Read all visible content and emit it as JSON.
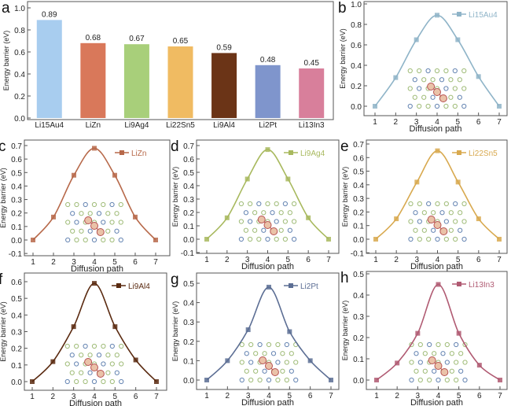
{
  "chart_data": [
    {
      "panel": "a",
      "type": "bar",
      "ylabel": "Energy barrier (eV)",
      "xlabel": "",
      "ylim": [
        0,
        1.0
      ],
      "yticks": [
        "0.0",
        "0.2",
        "0.4",
        "0.6",
        "0.8",
        "1.0"
      ],
      "categories": [
        "Li15Au4",
        "LiZn",
        "Li9Ag4",
        "Li22Sn5",
        "Li9Al4",
        "Li2Pt",
        "Li13In3"
      ],
      "values": [
        0.89,
        0.68,
        0.67,
        0.65,
        0.59,
        0.48,
        0.45
      ],
      "value_labels": [
        "0.89",
        "0.68",
        "0.67",
        "0.65",
        "0.59",
        "0.48",
        "0.45"
      ],
      "colors": [
        "#a8cdef",
        "#d9785a",
        "#a8cf7a",
        "#f0bb62",
        "#6b3417",
        "#7f95cc",
        "#d87f9b"
      ]
    },
    {
      "panel": "b",
      "type": "line",
      "legend": "Li15Au4",
      "color": "#8fb4c8",
      "xlabel": "Diffusion path",
      "ylabel": "Energy barrier (eV)",
      "x": [
        1,
        2,
        3,
        4,
        5,
        6,
        7
      ],
      "y": [
        0,
        0.28,
        0.65,
        0.89,
        0.65,
        0.29,
        0
      ],
      "ylim": [
        -0.08,
        1.0
      ],
      "yticks": [
        "0.0",
        "0.2",
        "0.4",
        "0.6",
        "0.8",
        "1.0"
      ],
      "xticks": [
        "1",
        "2",
        "3",
        "4",
        "5",
        "6",
        "7"
      ],
      "legend_position": "top-right"
    },
    {
      "panel": "c",
      "type": "line",
      "legend": "LiZn",
      "color": "#b7694a",
      "xlabel": "Diffusion path",
      "ylabel": "Energy barrier (eV)",
      "x": [
        1,
        2,
        3,
        4,
        5,
        6,
        7
      ],
      "y": [
        0,
        0.17,
        0.48,
        0.68,
        0.48,
        0.17,
        0
      ],
      "ylim": [
        -0.1,
        0.73
      ],
      "yticks": [
        "-0.1",
        "0.0",
        "0.1",
        "0.2",
        "0.3",
        "0.4",
        "0.5",
        "0.6",
        "0.7"
      ],
      "xticks": [
        "1",
        "2",
        "3",
        "4",
        "5",
        "6",
        "7"
      ],
      "legend_position": "top-right"
    },
    {
      "panel": "d",
      "type": "line",
      "legend": "Li9Ag4",
      "color": "#a8b95e",
      "xlabel": "Diffusion path",
      "ylabel": "Energy barrier (eV)",
      "x": [
        1,
        2,
        3,
        4,
        5,
        6,
        7
      ],
      "y": [
        0,
        0.16,
        0.45,
        0.67,
        0.45,
        0.16,
        0
      ],
      "ylim": [
        -0.1,
        0.73
      ],
      "yticks": [
        "-0.1",
        "0.0",
        "0.1",
        "0.2",
        "0.3",
        "0.4",
        "0.5",
        "0.6",
        "0.7"
      ],
      "xticks": [
        "1",
        "2",
        "3",
        "4",
        "5",
        "6",
        "7"
      ],
      "legend_position": "top-right"
    },
    {
      "panel": "e",
      "type": "line",
      "legend": "Li22Sn5",
      "color": "#d8a94f",
      "xlabel": "Diffusion path",
      "ylabel": "Energy barrier (eV)",
      "x": [
        1,
        2,
        3,
        4,
        5,
        6,
        7
      ],
      "y": [
        0,
        0.15,
        0.42,
        0.65,
        0.42,
        0.15,
        0
      ],
      "ylim": [
        -0.1,
        0.73
      ],
      "yticks": [
        "-0.1",
        "0.0",
        "0.1",
        "0.2",
        "0.3",
        "0.4",
        "0.5",
        "0.6",
        "0.7"
      ],
      "xticks": [
        "1",
        "2",
        "3",
        "4",
        "5",
        "6",
        "7"
      ],
      "legend_position": "top-right"
    },
    {
      "panel": "f",
      "type": "line",
      "legend": "Li9Al4",
      "color": "#5a2a10",
      "xlabel": "Diffusion path",
      "ylabel": "Energy barrier (eV)",
      "x": [
        1,
        2,
        3,
        4,
        5,
        6,
        7
      ],
      "y": [
        0,
        0.12,
        0.33,
        0.59,
        0.33,
        0.13,
        0
      ],
      "ylim": [
        -0.03,
        0.63
      ],
      "yticks": [
        "0.0",
        "0.1",
        "0.2",
        "0.3",
        "0.4",
        "0.5",
        "0.6"
      ],
      "xticks": [
        "1",
        "2",
        "3",
        "4",
        "5",
        "6",
        "7"
      ],
      "legend_position": "top-right"
    },
    {
      "panel": "g",
      "type": "line",
      "legend": "Li2Pt",
      "color": "#5c6e94",
      "xlabel": "Diffusion path",
      "ylabel": "Energy barrier (eV)",
      "x": [
        1,
        2,
        3,
        4,
        5,
        6,
        7
      ],
      "y": [
        0,
        0.1,
        0.26,
        0.48,
        0.25,
        0.1,
        0
      ],
      "ylim": [
        -0.04,
        0.55
      ],
      "yticks": [
        "0.0",
        "0.1",
        "0.2",
        "0.3",
        "0.4",
        "0.5"
      ],
      "xticks": [
        "1",
        "2",
        "3",
        "4",
        "5",
        "6",
        "7"
      ],
      "legend_position": "top-right"
    },
    {
      "panel": "h",
      "type": "line",
      "legend": "Li13In3",
      "color": "#b05a72",
      "xlabel": "Diffusion path",
      "ylabel": "Energy barrier (eV)",
      "x": [
        1,
        2,
        3,
        4,
        5,
        6,
        7
      ],
      "y": [
        0,
        0.08,
        0.22,
        0.45,
        0.22,
        0.07,
        0
      ],
      "ylim": [
        -0.05,
        0.5
      ],
      "yticks": [
        "0.0",
        "0.1",
        "0.2",
        "0.3",
        "0.4",
        "0.5"
      ],
      "xticks": [
        "1",
        "2",
        "3",
        "4",
        "5",
        "6",
        "7"
      ],
      "legend_position": "top-right"
    }
  ]
}
